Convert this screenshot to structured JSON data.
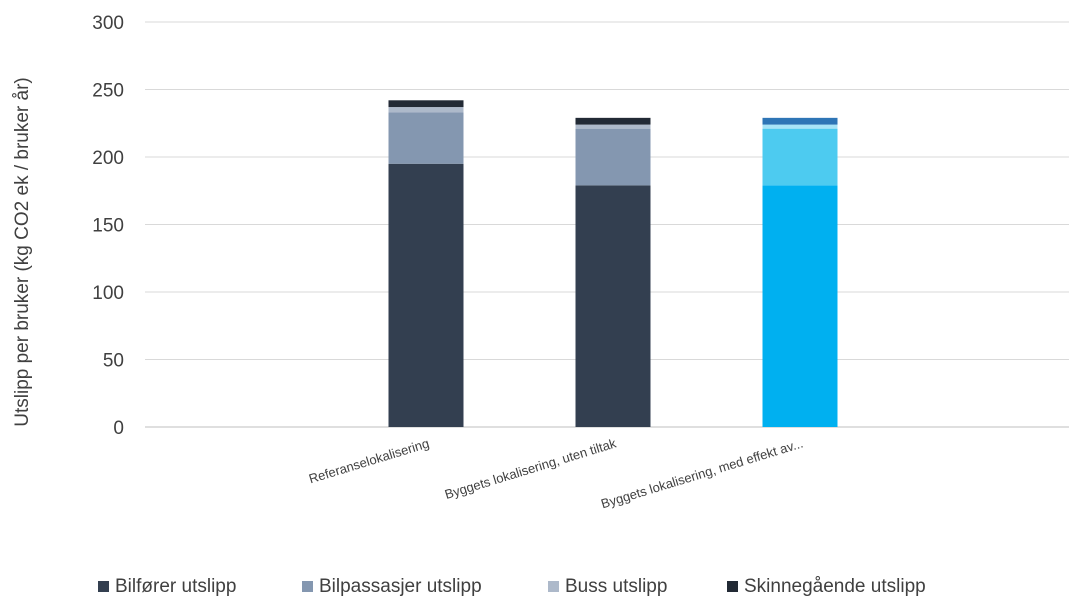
{
  "chart_data": {
    "type": "bar",
    "stacked": true,
    "ylabel": "Utslipp per bruker (kg CO2 ek / bruker år)",
    "xlabel": "",
    "ylim": [
      0,
      300
    ],
    "yticks": [
      0,
      50,
      100,
      150,
      200,
      250,
      300
    ],
    "grid": true,
    "legend_position": "bottom",
    "categories": [
      "Referanselokalisering",
      "Byggets lokalisering, uten tiltak",
      "Byggets lokalisering, med effekt av..."
    ],
    "series": [
      {
        "name": "Bilfører utslipp",
        "values": [
          195,
          179,
          179
        ],
        "color": "#333f50"
      },
      {
        "name": "Bilpassasjer utslipp",
        "values": [
          38,
          42,
          42
        ],
        "color": "#8497b0"
      },
      {
        "name": "Buss utslipp",
        "values": [
          4,
          3,
          3
        ],
        "color": "#adb9ca"
      },
      {
        "name": "Skinnegående utslipp",
        "values": [
          5,
          5,
          5
        ],
        "color": "#222a35"
      }
    ],
    "highlighted_category_colors": [
      "#00b0f0",
      "#4dcbf0",
      "#a8e4f7",
      "#2e75b6"
    ]
  }
}
